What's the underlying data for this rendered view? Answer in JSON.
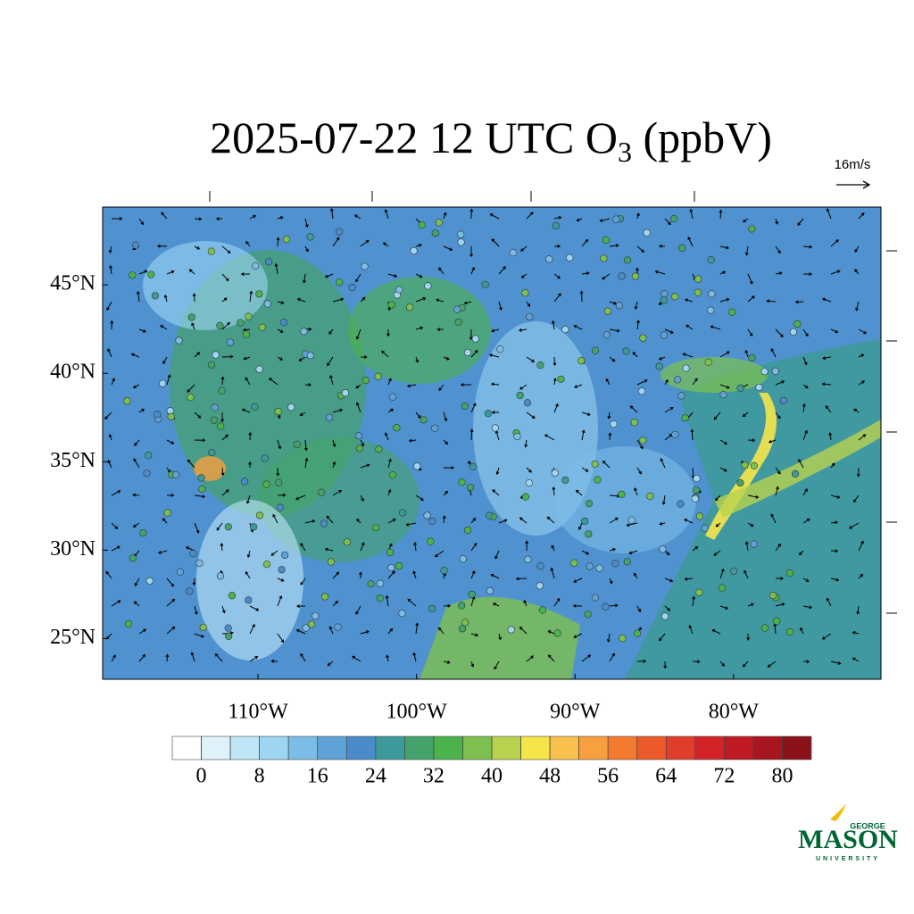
{
  "chart_data": {
    "type": "map",
    "title": {
      "text": "2025-07-22 12 UTC O",
      "subscript": "3",
      "suffix": " (ppbV)"
    },
    "vector_reference": "16m/s",
    "xlim": [
      -119.8,
      -70.7
    ],
    "ylim": [
      22.7,
      49.4
    ],
    "xticks": [
      {
        "value": -110,
        "label": "110°W"
      },
      {
        "value": -100,
        "label": "100°W"
      },
      {
        "value": -90,
        "label": "90°W"
      },
      {
        "value": -80,
        "label": "80°W"
      }
    ],
    "yticks": [
      {
        "value": 45,
        "label": "45°N"
      },
      {
        "value": 40,
        "label": "40°N"
      },
      {
        "value": 35,
        "label": "35°N"
      },
      {
        "value": 30,
        "label": "30°N"
      },
      {
        "value": 25,
        "label": "25°N"
      }
    ],
    "colorbar": {
      "levels": [
        0,
        4,
        8,
        12,
        16,
        20,
        24,
        28,
        32,
        36,
        40,
        44,
        48,
        52,
        56,
        60,
        64,
        68,
        72,
        76,
        80
      ],
      "colors": [
        "#ffffff",
        "#dff2fb",
        "#bfe6f7",
        "#9dd5f3",
        "#7bbde6",
        "#5fa2d8",
        "#4a8cc9",
        "#3e9a9a",
        "#44a36a",
        "#4cb34a",
        "#7dc04f",
        "#b8d24f",
        "#f5e54a",
        "#f8c04a",
        "#f8a03f",
        "#f47a30",
        "#ec5a2c",
        "#e03e2a",
        "#d42328",
        "#c01a22",
        "#a8151e",
        "#8b1218"
      ],
      "ticks": [
        0,
        8,
        16,
        24,
        32,
        40,
        48,
        56,
        64,
        72,
        80
      ]
    }
  },
  "logo": {
    "top": "GEORGE",
    "main": "MASON",
    "bottom": "UNIVERSITY"
  }
}
